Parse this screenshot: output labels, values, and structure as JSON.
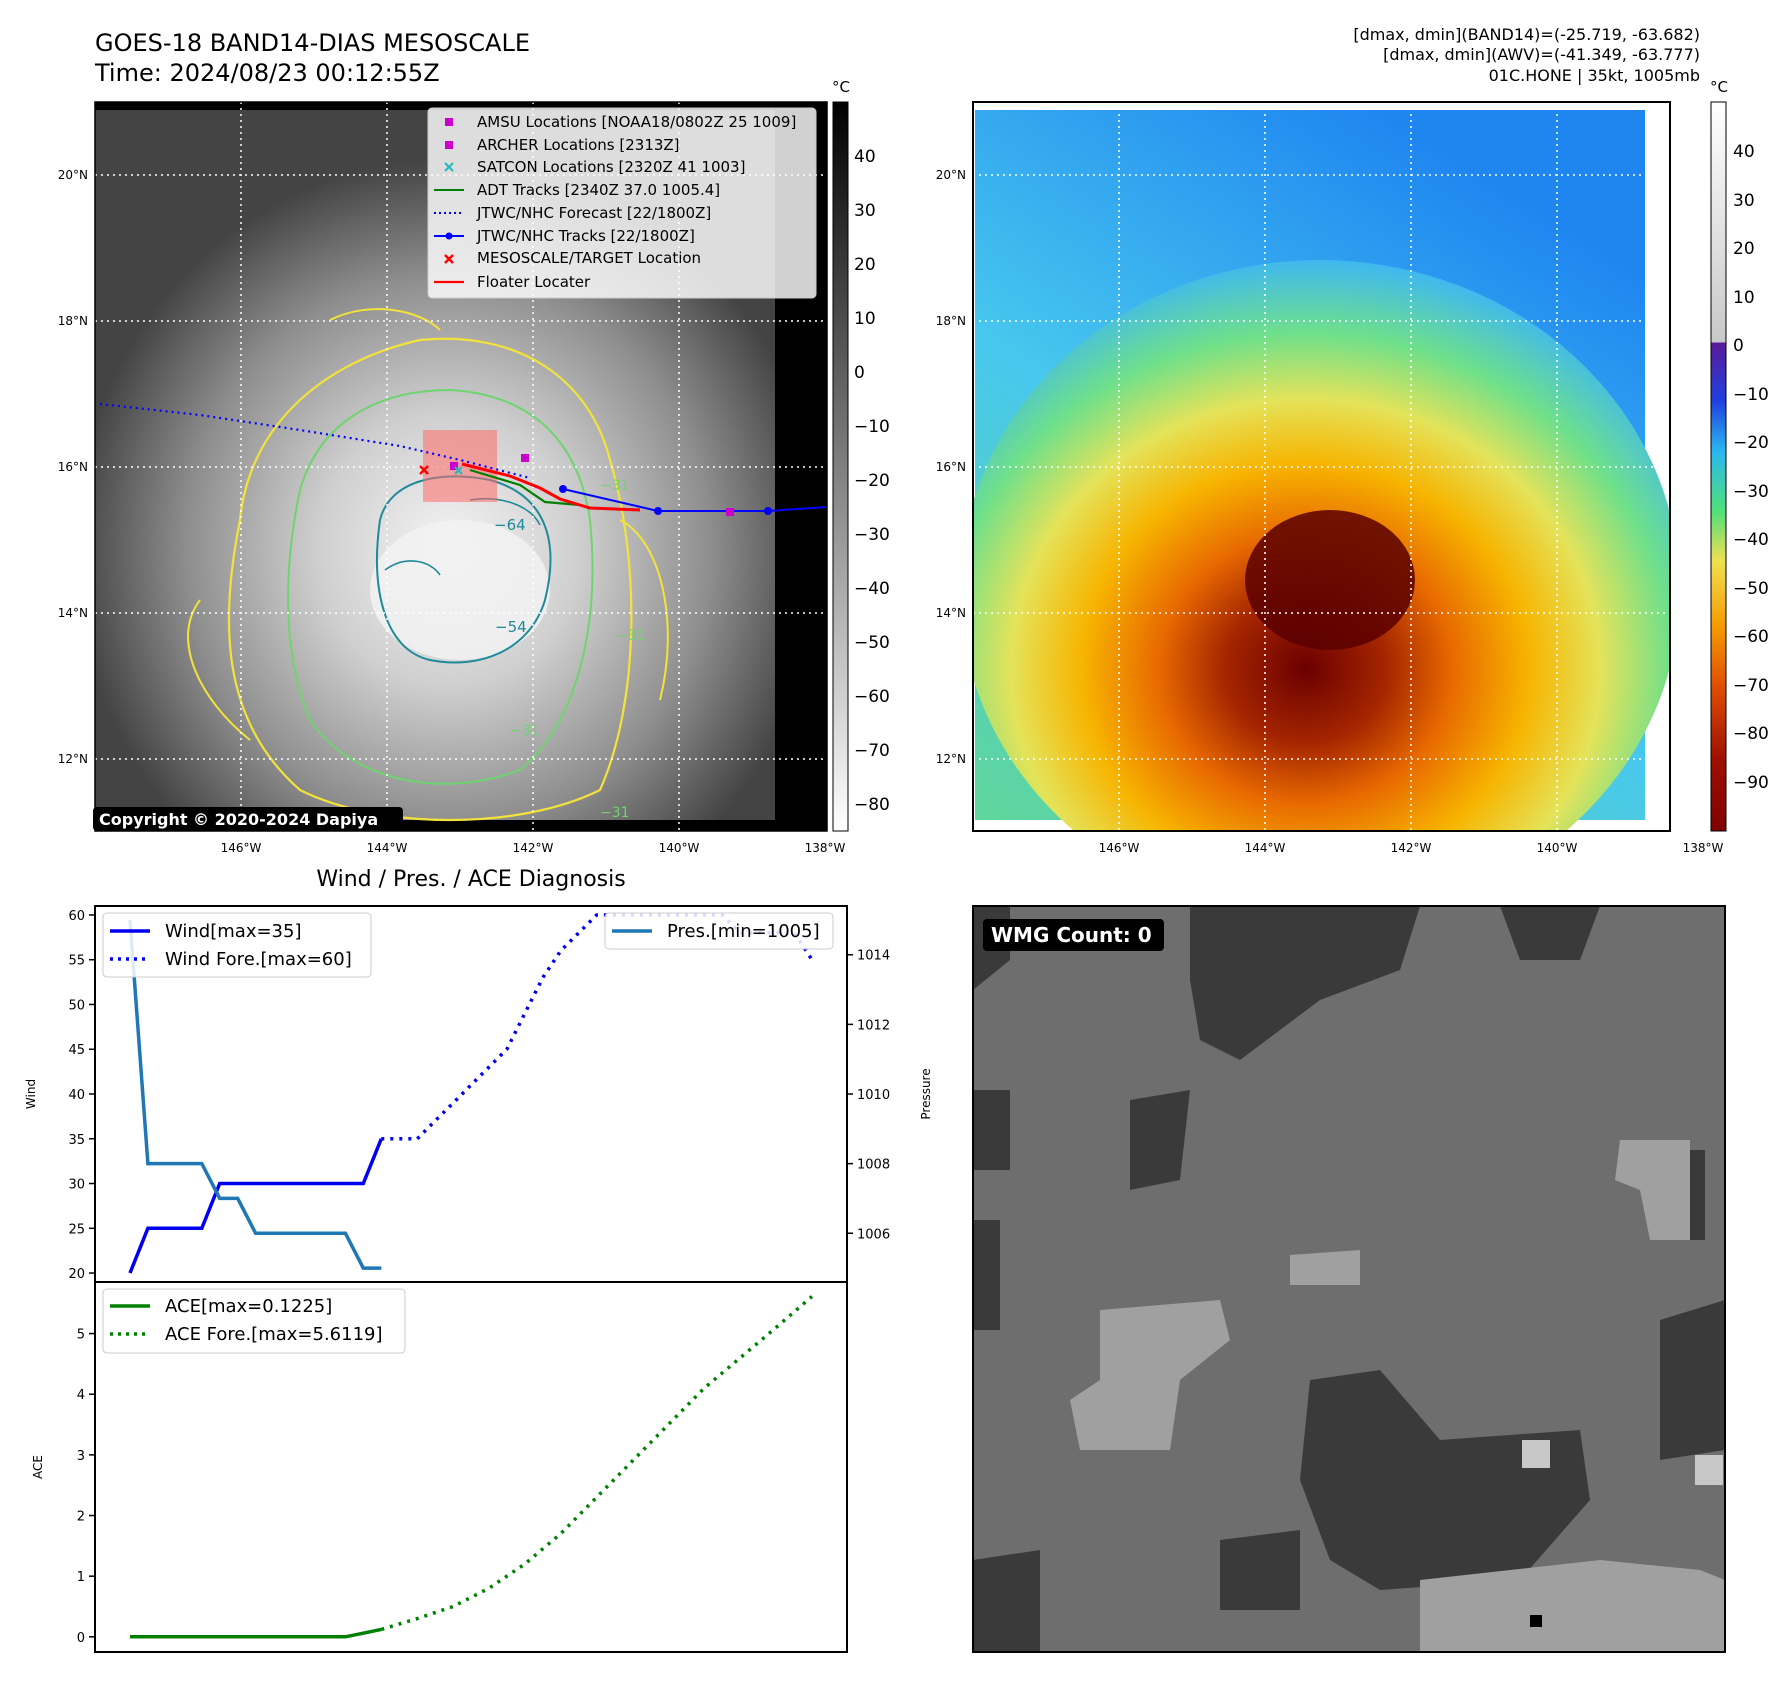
{
  "header": {
    "title": "GOES-18 BAND14-DIAS MESOSCALE",
    "time": "Time: 2024/08/23 00:12:55Z",
    "stats_band14": "[dmax, dmin](BAND14)=(-25.719, -63.682)",
    "stats_awv": "[dmax, dmin](AWV)=(-41.349, -63.777)",
    "storm": "01C.HONE | 35kt, 1005mb"
  },
  "colors": {
    "wind": "#0000ee",
    "pressure": "#1f77b4",
    "ace": "#008000",
    "contour_yellow": "#f2e23c",
    "contour_green": "#6fd46f",
    "contour_teal": "#1f8a9a",
    "jtwc": "#0000ff",
    "floater": "#ff0000",
    "amsu": "#cc00cc",
    "satcon": "#22bbbb"
  },
  "map_panel": {
    "lat_ticks": [
      "20°N",
      "18°N",
      "16°N",
      "14°N",
      "12°N"
    ],
    "lon_ticks": [
      "146°W",
      "144°W",
      "142°W",
      "140°W",
      "138°W"
    ],
    "colorbar_unit": "°C",
    "colorbar_ticks": [
      "40",
      "30",
      "20",
      "10",
      "0",
      "−10",
      "−20",
      "−30",
      "−40",
      "−50",
      "−60",
      "−70",
      "−80"
    ],
    "contour_labels": [
      "−64",
      "−54",
      "−31",
      "−31",
      "−31",
      "−31"
    ],
    "copyright": "Copyright © 2020-2024 Dapiya",
    "legend": [
      "AMSU Locations [NOAA18/0802Z 25 1009]",
      "ARCHER Locations [2313Z]",
      "SATCON Locations [2320Z 41 1003]",
      "ADT Tracks [2340Z 37.0 1005.4]",
      "JTWC/NHC Forecast [22/1800Z]",
      "JTWC/NHC Tracks [22/1800Z]",
      "MESOSCALE/TARGET Location",
      "Floater Locater"
    ]
  },
  "awv_panel": {
    "lat_ticks": [
      "20°N",
      "18°N",
      "16°N",
      "14°N",
      "12°N"
    ],
    "lon_ticks": [
      "146°W",
      "144°W",
      "142°W",
      "140°W",
      "138°W"
    ],
    "colorbar_unit": "°C",
    "colorbar_ticks": [
      "40",
      "30",
      "20",
      "10",
      "0",
      "−10",
      "−20",
      "−30",
      "−40",
      "−50",
      "−60",
      "−70",
      "−80",
      "−90"
    ]
  },
  "wmg_panel": {
    "label": "WMG Count: 0"
  },
  "chart_data": [
    {
      "type": "line",
      "title": "Wind / Pres. / ACE Diagnosis",
      "ylabel": "Wind",
      "y2label": "Pressure",
      "ylim": [
        19,
        61
      ],
      "y2lim": [
        1004.6,
        1015.4
      ],
      "yticks": [
        "60",
        "55",
        "50",
        "45",
        "40",
        "35",
        "30",
        "25",
        "20"
      ],
      "y2ticks": [
        "1014",
        "1012",
        "1010",
        "1008",
        "1006"
      ],
      "x": [
        0,
        1,
        2,
        3,
        4,
        5,
        6,
        7,
        8,
        9,
        10,
        11,
        12,
        13,
        14,
        15,
        16,
        17,
        18,
        19,
        20,
        21,
        22,
        23,
        24,
        25,
        26,
        27,
        28,
        29,
        30,
        31,
        32,
        33,
        34,
        35,
        36,
        37,
        38
      ],
      "series": [
        {
          "name": "Wind[max=35]",
          "style": "solid",
          "x": [
            0,
            1,
            2,
            3,
            4,
            5,
            6,
            7,
            8,
            9,
            10,
            11,
            12,
            13,
            14
          ],
          "values": [
            20,
            25,
            25,
            25,
            25,
            30,
            30,
            30,
            30,
            30,
            30,
            30,
            30,
            30,
            35
          ]
        },
        {
          "name": "Wind Fore.[max=60]",
          "style": "dotted",
          "x": [
            14,
            15,
            16,
            17,
            18,
            19,
            20,
            21,
            22,
            23,
            24,
            25,
            26,
            27,
            28,
            29,
            30,
            31,
            32,
            33,
            34,
            35,
            36,
            37,
            38
          ],
          "values": [
            35,
            35,
            35,
            37,
            39,
            41,
            43,
            45,
            49,
            53,
            56,
            58,
            60,
            60,
            60,
            60,
            60,
            60,
            60,
            60,
            58,
            58,
            58,
            58,
            55
          ]
        },
        {
          "name": "Pres.[min=1005]",
          "style": "solid",
          "axis": "right",
          "x": [
            0,
            1,
            2,
            3,
            4,
            5,
            6,
            7,
            8,
            9,
            10,
            11,
            12,
            13,
            14
          ],
          "values": [
            1015,
            1008,
            1008,
            1008,
            1008,
            1007,
            1007,
            1006,
            1006,
            1006,
            1006,
            1006,
            1006,
            1005,
            1005
          ]
        }
      ]
    },
    {
      "type": "line",
      "ylabel": "ACE",
      "ylim": [
        -0.25,
        5.85
      ],
      "yticks": [
        "5",
        "4",
        "3",
        "2",
        "1",
        "0"
      ],
      "series": [
        {
          "name": "ACE[max=0.1225]",
          "style": "solid",
          "x": [
            0,
            2,
            4,
            6,
            8,
            10,
            12,
            13,
            14
          ],
          "values": [
            0,
            0,
            0,
            0,
            0,
            0,
            0,
            0.06,
            0.1225
          ]
        },
        {
          "name": "ACE Fore.[max=5.6119]",
          "style": "dotted",
          "x": [
            14,
            16,
            18,
            20,
            22,
            24,
            26,
            28,
            30,
            32,
            34,
            36,
            38
          ],
          "values": [
            0.1225,
            0.3,
            0.5,
            0.8,
            1.2,
            1.7,
            2.3,
            2.9,
            3.5,
            4.1,
            4.6,
            5.1,
            5.6119
          ]
        }
      ]
    }
  ]
}
